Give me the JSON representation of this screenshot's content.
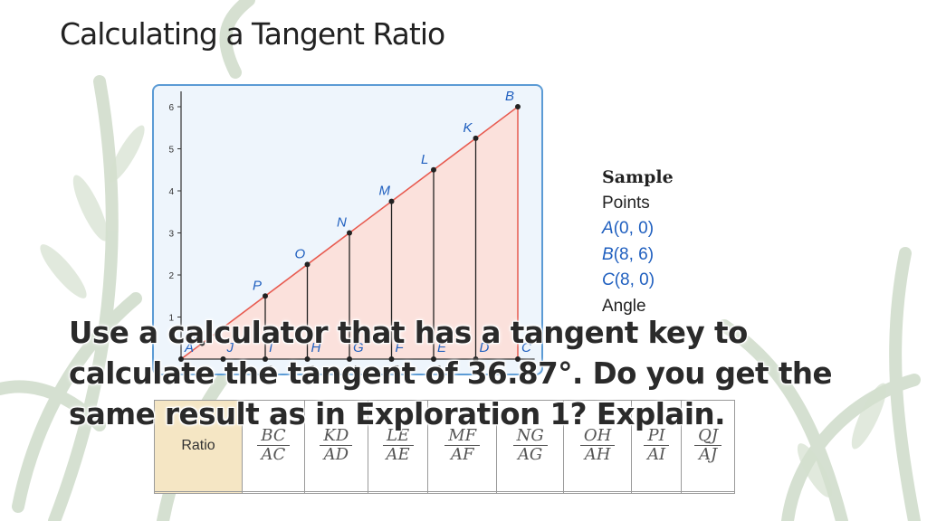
{
  "slide": {
    "title": "Calculating a Tangent Ratio",
    "question": "Use a calculator that has a tangent key to calculate the tangent of 36.87°. Do you get the same result as in Exploration 1? Explain."
  },
  "legend": {
    "header": "Sample",
    "points_label": "Points",
    "points": [
      {
        "name": "A",
        "coords": "(0, 0)"
      },
      {
        "name": "B",
        "coords": "(8, 6)"
      },
      {
        "name": "C",
        "coords": "(8, 0)"
      }
    ],
    "angle_label": "Angle"
  },
  "figure": {
    "y_ticks": [
      "6",
      "5",
      "4",
      "3",
      "2",
      "1"
    ],
    "x_ticks": [
      "0",
      "1",
      "2",
      "3",
      "4",
      "5",
      "6",
      "7"
    ],
    "top_points": [
      {
        "label": "Q",
        "x": 0.5,
        "y": 0.375
      },
      {
        "label": "P",
        "x": 2,
        "y": 1.5
      },
      {
        "label": "O",
        "x": 3,
        "y": 2.25
      },
      {
        "label": "N",
        "x": 4,
        "y": 3
      },
      {
        "label": "M",
        "x": 5,
        "y": 3.75
      },
      {
        "label": "L",
        "x": 6,
        "y": 4.5
      },
      {
        "label": "K",
        "x": 7,
        "y": 5.25
      },
      {
        "label": "B",
        "x": 8,
        "y": 6
      }
    ],
    "base_points": [
      {
        "label": "A",
        "x": 0
      },
      {
        "label": "J",
        "x": 1
      },
      {
        "label": "I",
        "x": 2
      },
      {
        "label": "H",
        "x": 3
      },
      {
        "label": "G",
        "x": 4
      },
      {
        "label": "F",
        "x": 5
      },
      {
        "label": "E",
        "x": 6
      },
      {
        "label": "D",
        "x": 7
      },
      {
        "label": "C",
        "x": 8
      }
    ],
    "fill_color": "#fbe1dc",
    "line_color": "#e85a4f",
    "axis_color": "#333333"
  },
  "table": {
    "row_header": "Ratio",
    "fractions": [
      {
        "num": "BC",
        "den": "AC"
      },
      {
        "num": "KD",
        "den": "AD"
      },
      {
        "num": "LE",
        "den": "AE"
      },
      {
        "num": "MF",
        "den": "AF"
      },
      {
        "num": "NG",
        "den": "AG"
      },
      {
        "num": "OH",
        "den": "AH"
      },
      {
        "num": "PI",
        "den": "AI"
      },
      {
        "num": "QJ",
        "den": "AJ"
      }
    ]
  }
}
